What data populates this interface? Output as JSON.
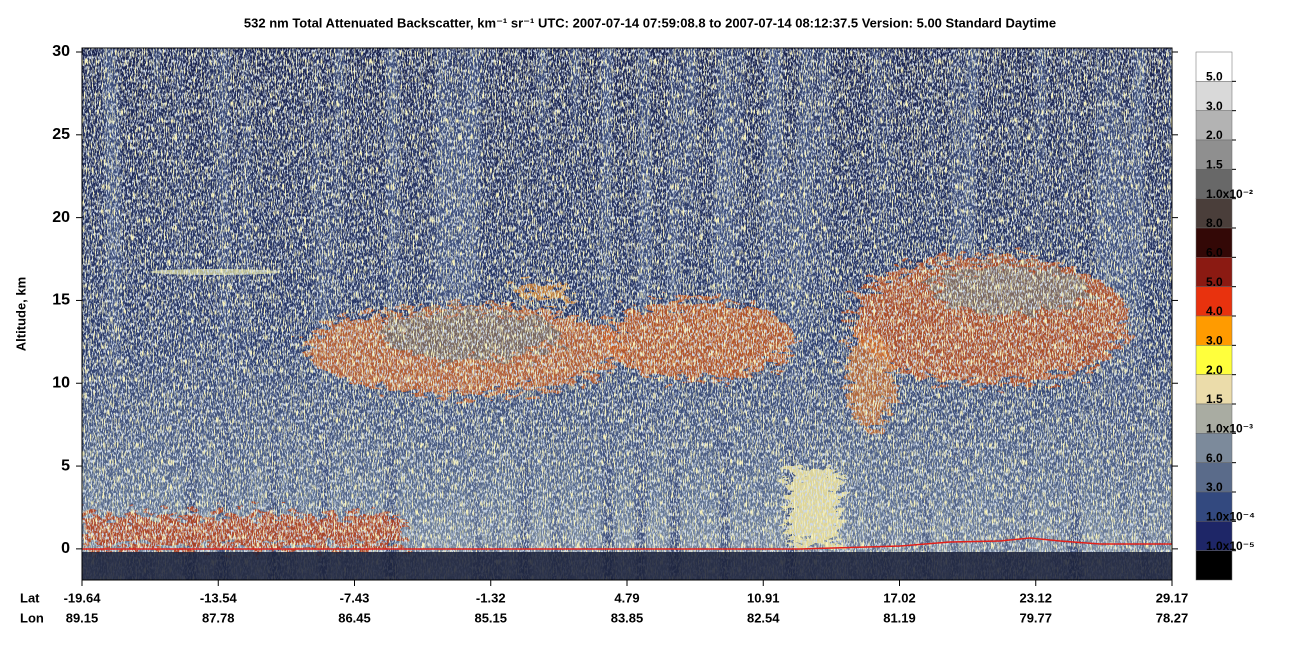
{
  "chart_data": {
    "type": "curtain",
    "title": "532 nm Total Attenuated Backscatter, km⁻¹ sr⁻¹    UTC:  2007-07-14 07:59:08.8  to  2007-07-14 08:12:37.5    Version: 5.00  Standard  Daytime",
    "y_label": "Altitude, km",
    "ylim": [
      -2,
      30
    ],
    "yticks": [
      0,
      5,
      10,
      15,
      20,
      25,
      30
    ],
    "lat_label": "Lat",
    "lon_label": "Lon",
    "lat": [
      -19.64,
      -13.54,
      -7.43,
      -1.32,
      4.79,
      10.91,
      17.02,
      23.12,
      29.17
    ],
    "lon": [
      89.15,
      87.78,
      86.45,
      85.15,
      83.85,
      82.54,
      81.19,
      79.77,
      78.27
    ],
    "colorscale": {
      "colors": [
        "#ffffff",
        "#d9d9d9",
        "#b3b3b3",
        "#8f8f8f",
        "#686868",
        "#4a3e3a",
        "#330806",
        "#8b1a12",
        "#e8320e",
        "#ff9b00",
        "#ffff3c",
        "#ebdcaa",
        "#a9aca2",
        "#7c8a9b",
        "#5a6b8a",
        "#33497f",
        "#1e2667",
        "#000000"
      ],
      "ticks": [
        {
          "value": 0.05,
          "label": "5.0"
        },
        {
          "value": 0.03,
          "label": "3.0"
        },
        {
          "value": 0.02,
          "label": "2.0"
        },
        {
          "value": 0.015,
          "label": "1.5"
        },
        {
          "value": 0.01,
          "label": "1.0x10⁻²"
        },
        {
          "value": 0.008,
          "label": "8.0"
        },
        {
          "value": 0.006,
          "label": "6.0"
        },
        {
          "value": 0.005,
          "label": "5.0"
        },
        {
          "value": 0.004,
          "label": "4.0"
        },
        {
          "value": 0.003,
          "label": "3.0"
        },
        {
          "value": 0.002,
          "label": "2.0"
        },
        {
          "value": 0.0015,
          "label": "1.5"
        },
        {
          "value": 0.001,
          "label": "1.0x10⁻³"
        },
        {
          "value": 0.0006,
          "label": "6.0"
        },
        {
          "value": 0.0003,
          "label": "3.0"
        },
        {
          "value": 0.0001,
          "label": "1.0x10⁻⁴"
        },
        {
          "value": 1e-05,
          "label": "1.0x10⁻⁵"
        }
      ]
    }
  }
}
